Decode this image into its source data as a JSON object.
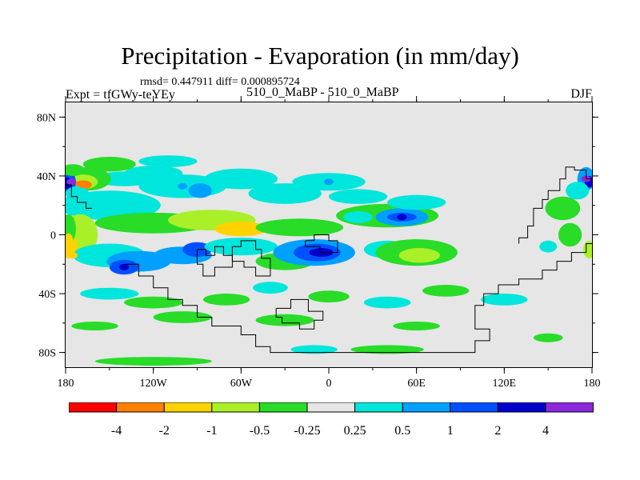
{
  "title": "Precipitation - Evaporation (in mm/day)",
  "stats_line": "rmsd= 0.447911 diff= 0.000895724",
  "experiment_label": "Expt = tfGWy-teYEy",
  "comparison": "510_0_MaBP - 510_0_MaBP",
  "season": "DJF",
  "chart_data": {
    "type": "heatmap",
    "title": "Precipitation - Evaporation (in mm/day)",
    "projection": "cylindrical equidistant",
    "x_ticks": [
      "180",
      "120W",
      "60W",
      "0",
      "60E",
      "120E",
      "180"
    ],
    "y_ticks": [
      "80N",
      "40N",
      "0",
      "40S",
      "80S"
    ],
    "xlim": [
      -180,
      180
    ],
    "ylim": [
      -90,
      90
    ],
    "units": "mm/day",
    "colorbar": {
      "levels": [
        "-4",
        "-2",
        "-1",
        "-0.5",
        "-0.25",
        "0.25",
        "0.5",
        "1",
        "2",
        "4"
      ],
      "colors": [
        "#ff0000",
        "#ff8000",
        "#ffd200",
        "#aaf028",
        "#28dc28",
        "#e6e6e6",
        "#00e6dc",
        "#00a0ff",
        "#0050ff",
        "#0000cc",
        "#8c28dc"
      ]
    },
    "features": [
      {
        "lon": -168,
        "lat": 34,
        "value": -4
      },
      {
        "lon": -176,
        "lat": 36,
        "value": 4
      },
      {
        "lon": 176,
        "lat": 38,
        "value": 4
      },
      {
        "lon": -68,
        "lat": 2,
        "value": -2
      },
      {
        "lon": -10,
        "lat": -12,
        "value": 2
      },
      {
        "lon": 50,
        "lat": 12,
        "value": 2
      },
      {
        "lon": -140,
        "lat": -22,
        "value": 2
      },
      {
        "lon": -90,
        "lat": -10,
        "value": 1
      },
      {
        "lon": 60,
        "lat": -14,
        "value": -1
      },
      {
        "lon": -175,
        "lat": -14,
        "value": -2
      },
      {
        "lon": -100,
        "lat": 33,
        "value": 0.5
      },
      {
        "lon": 0,
        "lat": 36,
        "value": 0.5
      }
    ]
  }
}
